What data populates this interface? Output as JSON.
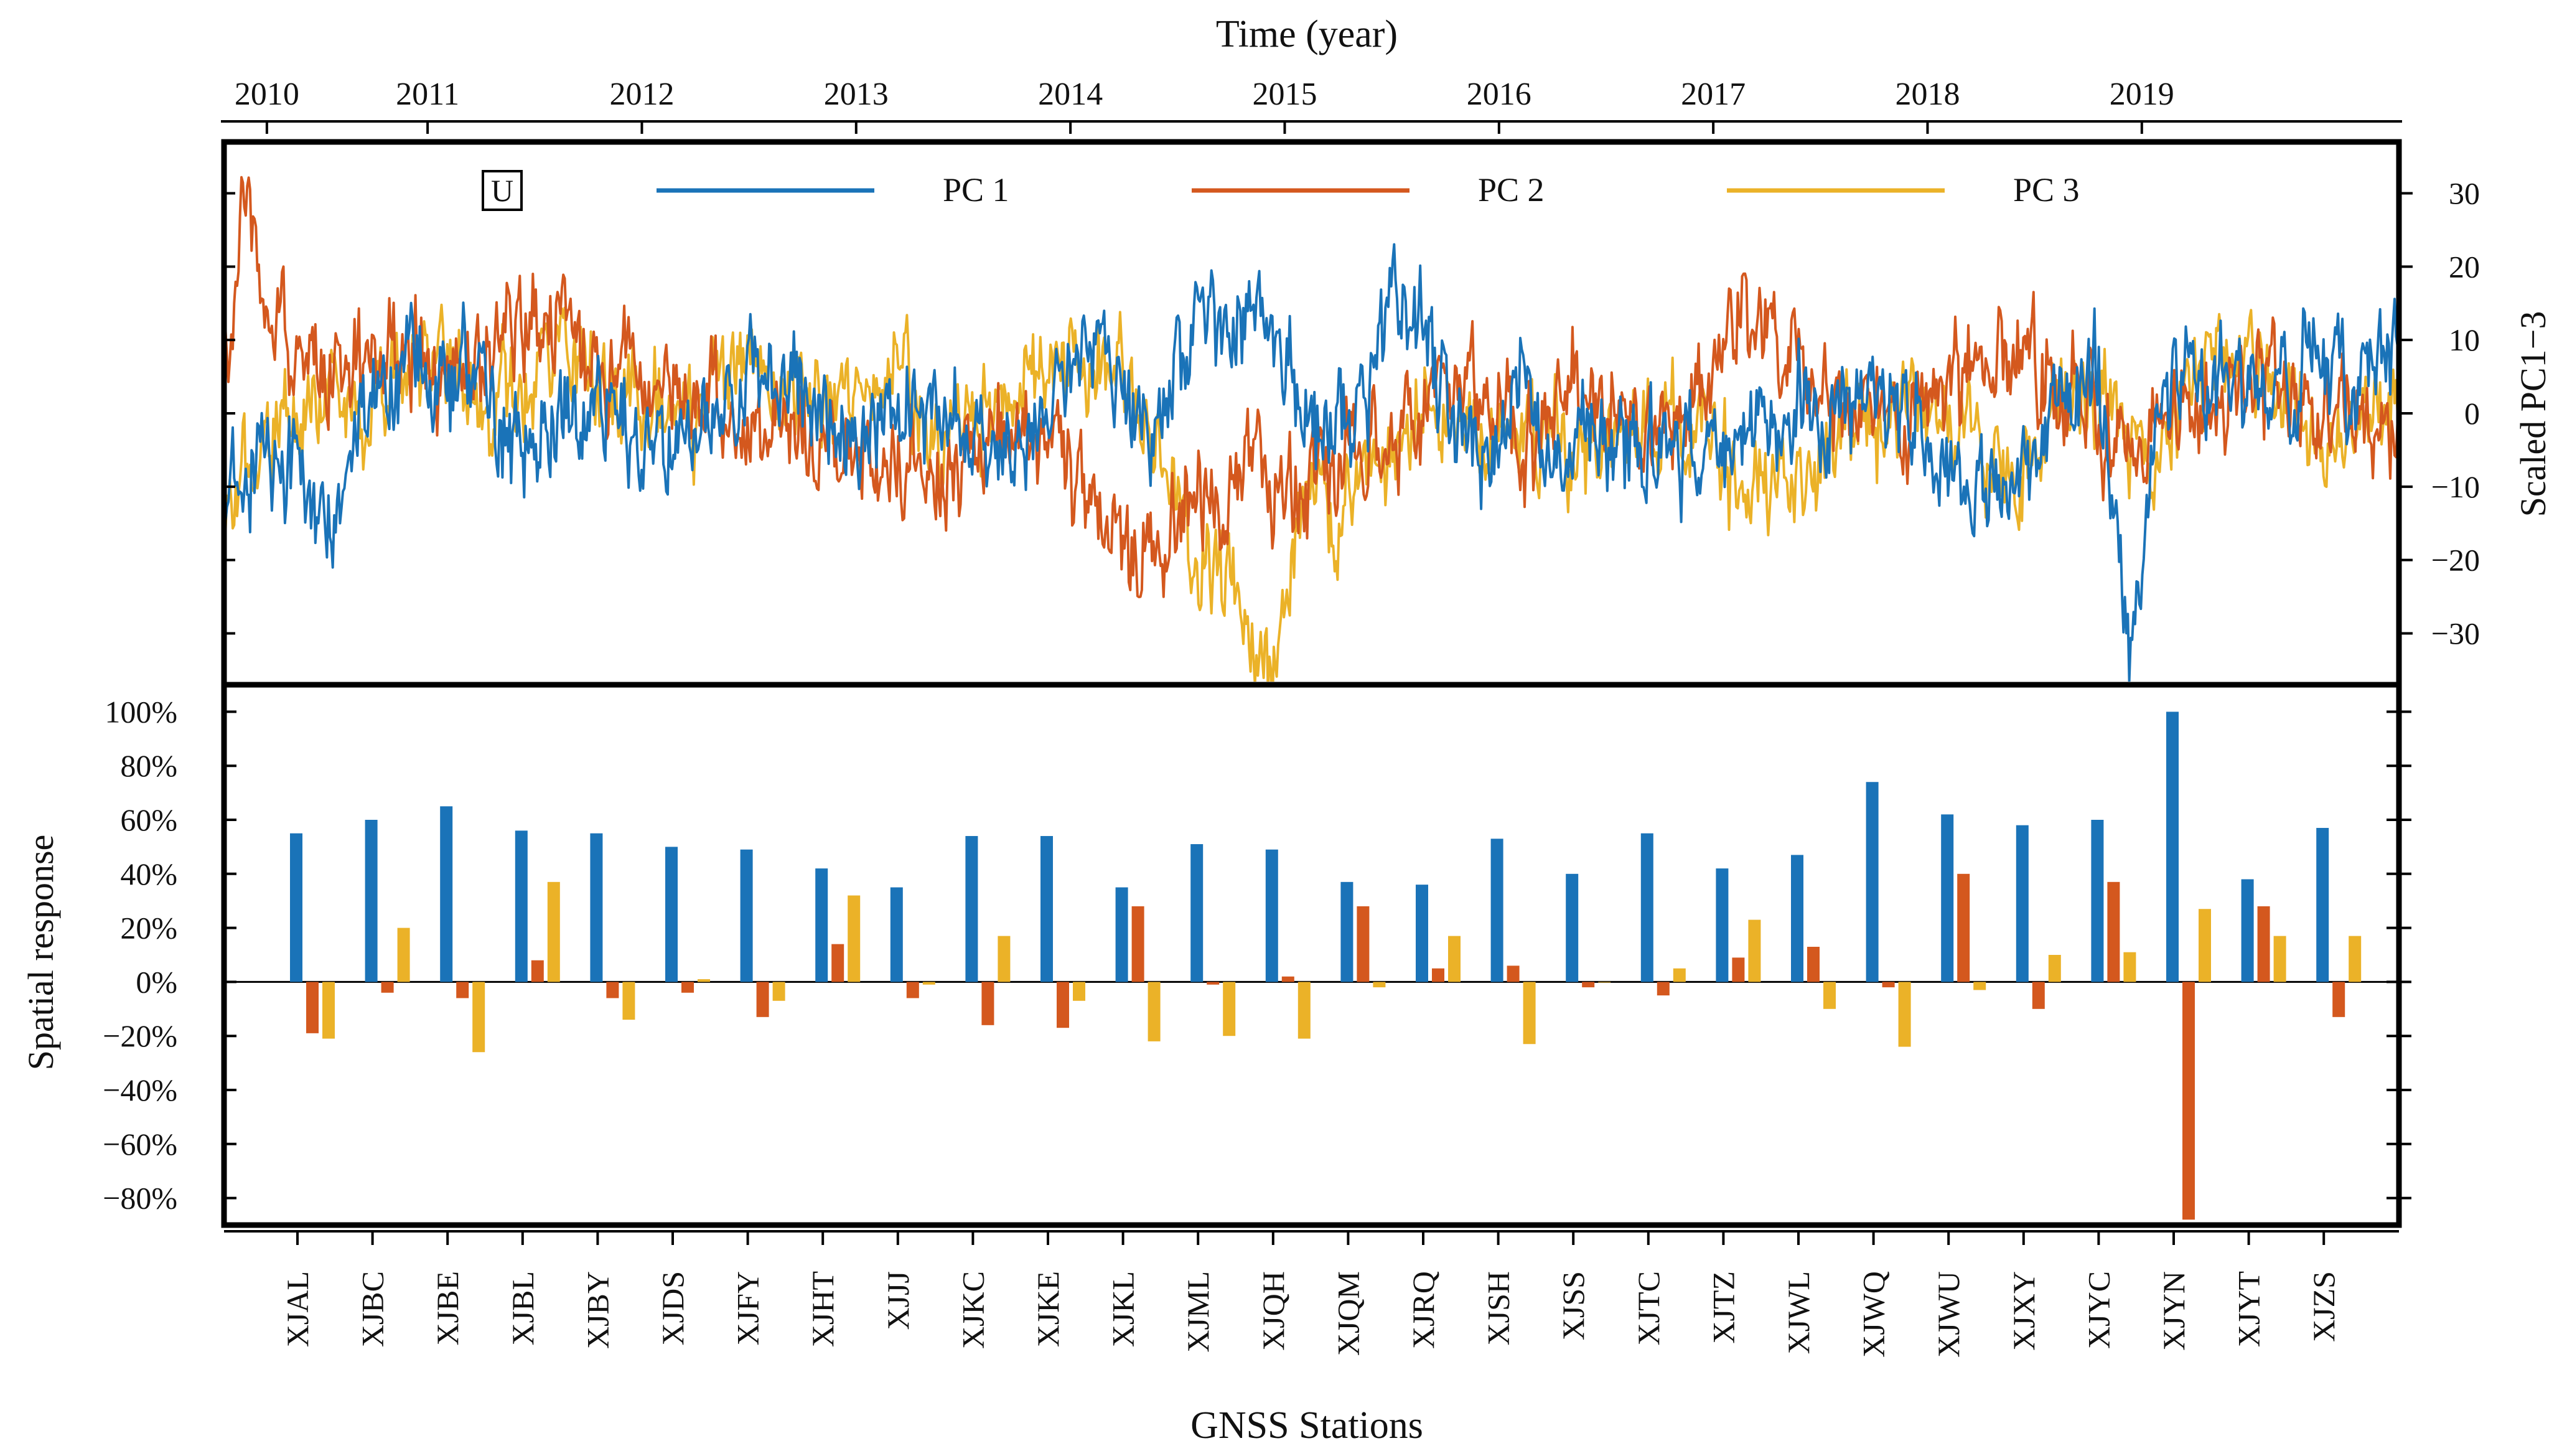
{
  "colors": {
    "pc1": "#1a73b8",
    "pc2": "#d4581e",
    "pc3": "#ebb228",
    "axis": "#000000"
  },
  "chart_data": [
    {
      "type": "line",
      "panel": "top",
      "title": "Time (year)",
      "ylabel": "Scaled PC1−3",
      "panel_label": "U",
      "ylim": [
        -37,
        37
      ],
      "xlim": [
        2009.8,
        2019.95
      ],
      "year_labels": [
        "2010",
        "2011",
        "2012",
        "2013",
        "2014",
        "2015",
        "2016",
        "2017",
        "2018",
        "2019"
      ],
      "year_positions": [
        2010.0,
        2010.75,
        2011.75,
        2012.75,
        2013.75,
        2014.75,
        2015.75,
        2016.75,
        2017.75,
        2018.75
      ],
      "yticks": [
        30,
        20,
        10,
        0,
        -10,
        -20,
        -30
      ],
      "ytick_labels": [
        "30",
        "20",
        "10",
        "0",
        "−10",
        "−20",
        "−30"
      ],
      "series": [
        {
          "name": "PC 1",
          "x": [
            2009.83,
            2010.0,
            2010.2,
            2010.35,
            2010.45,
            2010.6,
            2010.8,
            2011.0,
            2011.2,
            2011.5,
            2011.8,
            2012.0,
            2012.3,
            2012.5,
            2012.7,
            2012.9,
            2013.1,
            2013.3,
            2013.5,
            2013.7,
            2013.9,
            2014.1,
            2014.4,
            2014.6,
            2014.8,
            2014.95,
            2015.1,
            2015.3,
            2015.5,
            2015.7,
            2015.85,
            2016.0,
            2016.2,
            2016.5,
            2016.8,
            2017.0,
            2017.3,
            2017.6,
            2017.85,
            2018.0,
            2018.2,
            2018.4,
            2018.55,
            2018.7,
            2018.85,
            2019.0,
            2019.2,
            2019.4,
            2019.55,
            2019.75,
            2019.95
          ],
          "values": [
            -10,
            -2,
            -12,
            -15,
            2,
            5,
            4,
            3,
            -6,
            2,
            -6,
            -2,
            6,
            3,
            -4,
            -1,
            3,
            -2,
            -6,
            5,
            8,
            -4,
            15,
            12,
            4,
            -2,
            0,
            18,
            2,
            -6,
            5,
            -5,
            -2,
            -8,
            -3,
            2,
            -2,
            3,
            -8,
            -12,
            -8,
            2,
            5,
            -35,
            5,
            3,
            5,
            2,
            8,
            4,
            10
          ]
        },
        {
          "name": "PC 2",
          "x": [
            2009.83,
            2009.9,
            2010.0,
            2010.2,
            2010.4,
            2010.6,
            2010.8,
            2011.0,
            2011.3,
            2011.6,
            2011.9,
            2012.1,
            2012.3,
            2012.5,
            2012.7,
            2012.9,
            2013.1,
            2013.4,
            2013.6,
            2013.8,
            2014.0,
            2014.2,
            2014.4,
            2014.6,
            2014.8,
            2015.0,
            2015.2,
            2015.5,
            2015.7,
            2015.9,
            2016.1,
            2016.3,
            2016.5,
            2016.7,
            2016.9,
            2017.1,
            2017.3,
            2017.5,
            2017.7,
            2017.9,
            2018.1,
            2018.3,
            2018.5,
            2018.7,
            2018.9,
            2019.1,
            2019.3,
            2019.5,
            2019.7,
            2019.95
          ],
          "values": [
            12,
            30,
            18,
            8,
            4,
            10,
            4,
            8,
            12,
            6,
            4,
            2,
            -4,
            -2,
            -8,
            -6,
            -10,
            -4,
            -2,
            -10,
            -20,
            -15,
            -12,
            -6,
            -12,
            -8,
            -2,
            5,
            2,
            -4,
            2,
            0,
            -6,
            2,
            12,
            8,
            2,
            -2,
            0,
            5,
            8,
            4,
            0,
            -6,
            2,
            3,
            5,
            2,
            0,
            -2
          ]
        },
        {
          "name": "PC 3",
          "x": [
            2009.83,
            2010.0,
            2010.2,
            2010.4,
            2010.6,
            2010.8,
            2011.0,
            2011.3,
            2011.6,
            2011.9,
            2012.1,
            2012.3,
            2012.5,
            2012.7,
            2012.9,
            2013.1,
            2013.3,
            2013.5,
            2013.7,
            2013.9,
            2014.1,
            2014.3,
            2014.5,
            2014.7,
            2014.85,
            2015.0,
            2015.2,
            2015.4,
            2015.6,
            2015.8,
            2016.0,
            2016.2,
            2016.4,
            2016.6,
            2016.8,
            2017.0,
            2017.2,
            2017.4,
            2017.6,
            2017.8,
            2018.0,
            2018.2,
            2018.4,
            2018.6,
            2018.8,
            2019.0,
            2019.2,
            2019.4,
            2019.6,
            2019.8,
            2019.95
          ],
          "values": [
            -10,
            -4,
            4,
            2,
            6,
            8,
            0,
            6,
            4,
            -2,
            4,
            8,
            2,
            0,
            6,
            -4,
            2,
            4,
            8,
            5,
            2,
            -20,
            -25,
            -32,
            -10,
            -15,
            -6,
            2,
            0,
            -4,
            -2,
            -6,
            -4,
            0,
            -8,
            -12,
            -6,
            0,
            -2,
            2,
            -4,
            -8,
            4,
            2,
            -8,
            6,
            8,
            4,
            -4,
            2,
            0
          ]
        }
      ]
    },
    {
      "type": "bar",
      "panel": "bottom",
      "xlabel": "GNSS Stations",
      "ylabel": "Spatial response",
      "ylim": [
        -90,
        110
      ],
      "yticks": [
        100,
        80,
        60,
        40,
        20,
        0,
        -20,
        -40,
        -60,
        -80
      ],
      "ytick_labels": [
        "100%",
        "80%",
        "60%",
        "40%",
        "20%",
        "0%",
        "−20%",
        "−40%",
        "−60%",
        "−80%"
      ],
      "categories": [
        "XJAL",
        "XJBC",
        "XJBE",
        "XJBL",
        "XJBY",
        "XJDS",
        "XJFY",
        "XJHT",
        "XJJJ",
        "XJKC",
        "XJKE",
        "XJKL",
        "XJML",
        "XJQH",
        "XJQM",
        "XJRQ",
        "XJSH",
        "XJSS",
        "XJTC",
        "XJTZ",
        "XJWL",
        "XJWQ",
        "XJWU",
        "XJXY",
        "XJYC",
        "XJYN",
        "XJYT",
        "XJZS"
      ],
      "series": [
        {
          "name": "PC 1",
          "values": [
            55,
            60,
            65,
            56,
            55,
            50,
            49,
            42,
            35,
            54,
            54,
            35,
            51,
            49,
            37,
            36,
            53,
            40,
            55,
            42,
            47,
            74,
            62,
            58,
            60,
            100,
            38,
            57
          ]
        },
        {
          "name": "PC 2",
          "values": [
            -19,
            -4,
            -6,
            8,
            -6,
            -4,
            -13,
            14,
            -6,
            -16,
            -17,
            28,
            -1,
            2,
            28,
            5,
            6,
            -2,
            -5,
            9,
            13,
            -2,
            40,
            -10,
            37,
            -88,
            28,
            -13
          ]
        },
        {
          "name": "PC 3",
          "values": [
            -21,
            20,
            -26,
            37,
            -14,
            1,
            -7,
            32,
            -1,
            17,
            -7,
            -22,
            -20,
            -21,
            -2,
            17,
            -23,
            0,
            5,
            23,
            -10,
            -24,
            -3,
            10,
            11,
            27,
            17,
            17
          ]
        }
      ]
    }
  ]
}
